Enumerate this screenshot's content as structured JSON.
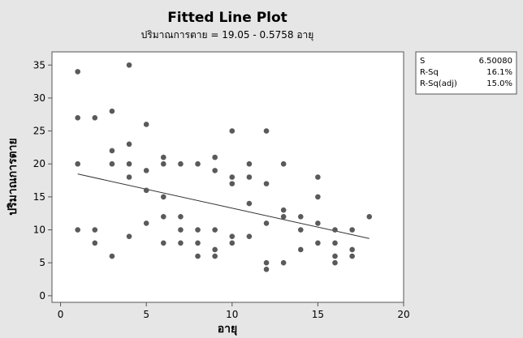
{
  "chart_data": {
    "type": "scatter",
    "title": "Fitted Line Plot",
    "subtitle": "ปริมาณการตาย =  19.05 - 0.5758 อายุ",
    "xlabel": "อายุ",
    "ylabel": "ปริมาณการตาย",
    "xlim": [
      -0.5,
      20
    ],
    "ylim": [
      -1,
      37
    ],
    "xticks": [
      "0",
      "5",
      "10",
      "15",
      "20"
    ],
    "yticks": [
      "0",
      "5",
      "10",
      "15",
      "20",
      "25",
      "30",
      "35"
    ],
    "grid": false,
    "fit": {
      "intercept": 19.05,
      "slope": -0.5758,
      "x_range": [
        1,
        18
      ]
    },
    "stats": [
      {
        "label": "S",
        "value": "6.50080"
      },
      {
        "label": "R-Sq",
        "value": "16.1%"
      },
      {
        "label": "R-Sq(adj)",
        "value": "15.0%"
      }
    ],
    "colors": {
      "background": "#e6e6e6",
      "plot_bg": "#ffffff",
      "point": "#5a5a5a",
      "line": "#333333"
    },
    "points": [
      [
        1,
        34
      ],
      [
        1,
        27
      ],
      [
        1,
        20
      ],
      [
        1,
        10
      ],
      [
        2,
        27
      ],
      [
        2,
        10
      ],
      [
        2,
        8
      ],
      [
        3,
        28
      ],
      [
        3,
        22
      ],
      [
        3,
        20
      ],
      [
        3,
        6
      ],
      [
        4,
        35
      ],
      [
        4,
        23
      ],
      [
        4,
        20
      ],
      [
        4,
        18
      ],
      [
        4,
        9
      ],
      [
        5,
        26
      ],
      [
        5,
        19
      ],
      [
        5,
        16
      ],
      [
        5,
        11
      ],
      [
        6,
        21
      ],
      [
        6,
        20
      ],
      [
        6,
        15
      ],
      [
        6,
        12
      ],
      [
        6,
        8
      ],
      [
        7,
        20
      ],
      [
        7,
        12
      ],
      [
        7,
        10
      ],
      [
        7,
        8
      ],
      [
        8,
        20
      ],
      [
        8,
        10
      ],
      [
        8,
        8
      ],
      [
        8,
        6
      ],
      [
        9,
        21
      ],
      [
        9,
        19
      ],
      [
        9,
        10
      ],
      [
        9,
        7
      ],
      [
        9,
        6
      ],
      [
        10,
        25
      ],
      [
        10,
        18
      ],
      [
        10,
        17
      ],
      [
        10,
        9
      ],
      [
        10,
        8
      ],
      [
        11,
        20
      ],
      [
        11,
        18
      ],
      [
        11,
        14
      ],
      [
        11,
        9
      ],
      [
        12,
        25
      ],
      [
        12,
        17
      ],
      [
        12,
        11
      ],
      [
        12,
        5
      ],
      [
        12,
        4
      ],
      [
        13,
        20
      ],
      [
        13,
        13
      ],
      [
        13,
        12
      ],
      [
        13,
        5
      ],
      [
        14,
        12
      ],
      [
        14,
        10
      ],
      [
        14,
        7
      ],
      [
        15,
        18
      ],
      [
        15,
        15
      ],
      [
        15,
        11
      ],
      [
        15,
        8
      ],
      [
        16,
        10
      ],
      [
        16,
        8
      ],
      [
        16,
        6
      ],
      [
        16,
        5
      ],
      [
        17,
        10
      ],
      [
        17,
        7
      ],
      [
        17,
        6
      ],
      [
        18,
        12
      ]
    ]
  }
}
